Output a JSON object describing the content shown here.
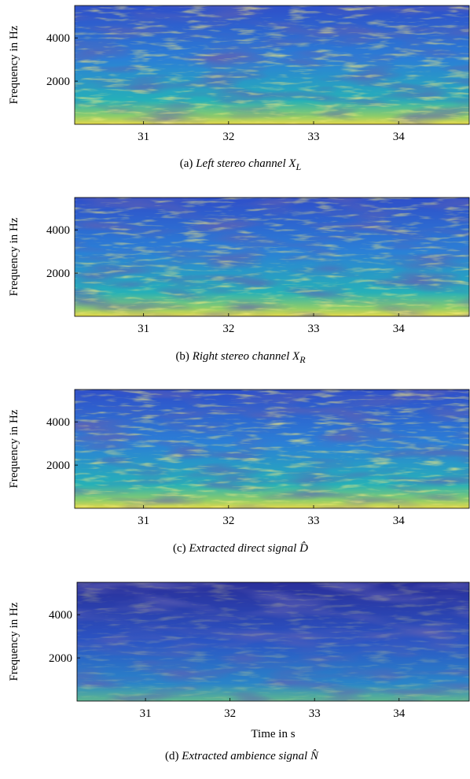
{
  "chart_data": [
    {
      "type": "spectrogram",
      "ylabel": "Frequency in Hz",
      "xlim": [
        30.19,
        34.83
      ],
      "ylim": [
        0,
        5500
      ],
      "xticks": [
        31,
        32,
        33,
        34
      ],
      "yticks": [
        2000,
        4000
      ],
      "caption": {
        "label": "(a)",
        "text": "Left stereo channel",
        "symbol": "X",
        "subscript": "L"
      }
    },
    {
      "type": "spectrogram",
      "ylabel": "Frequency in Hz",
      "xlim": [
        30.19,
        34.83
      ],
      "ylim": [
        0,
        5500
      ],
      "xticks": [
        31,
        32,
        33,
        34
      ],
      "yticks": [
        2000,
        4000
      ],
      "caption": {
        "label": "(b)",
        "text": "Right stereo channel",
        "symbol": "X",
        "subscript": "R"
      }
    },
    {
      "type": "spectrogram",
      "ylabel": "Frequency in Hz",
      "xlim": [
        30.19,
        34.83
      ],
      "ylim": [
        0,
        5500
      ],
      "xticks": [
        31,
        32,
        33,
        34
      ],
      "yticks": [
        2000,
        4000
      ],
      "caption": {
        "label": "(c)",
        "text": "Extracted direct signal",
        "symbol": "D̂"
      }
    },
    {
      "type": "spectrogram",
      "ylabel": "Frequency in Hz",
      "xlabel": "Time in s",
      "xlim": [
        30.19,
        34.83
      ],
      "ylim": [
        0,
        5500
      ],
      "xticks": [
        31,
        32,
        33,
        34
      ],
      "yticks": [
        2000,
        4000
      ],
      "caption": {
        "label": "(d)",
        "text": "Extracted ambience signal",
        "symbol": "N̂"
      }
    }
  ]
}
